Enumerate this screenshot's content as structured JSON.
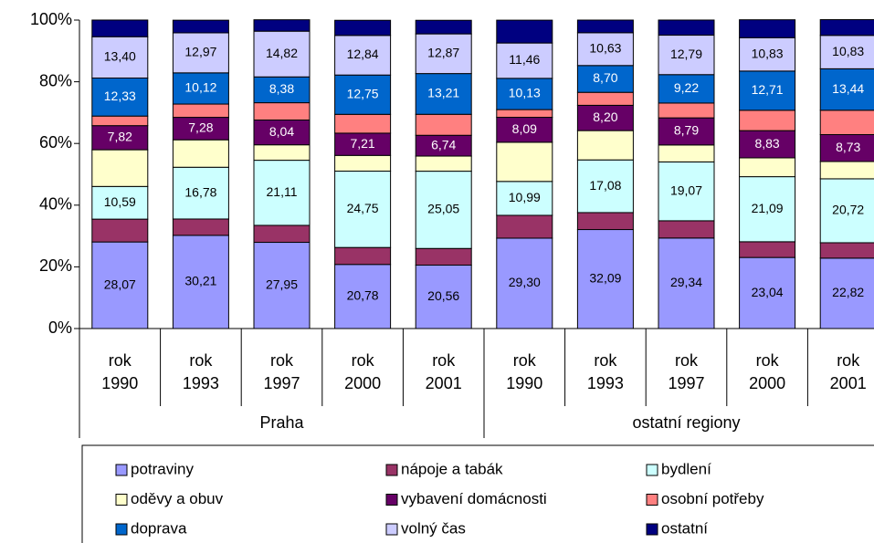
{
  "chart_data": {
    "type": "stacked_bar",
    "categories": [
      [
        "rok",
        "1990"
      ],
      [
        "rok",
        "1993"
      ],
      [
        "rok",
        "1997"
      ],
      [
        "rok",
        "2000"
      ],
      [
        "rok",
        "2001"
      ],
      [
        "rok",
        "1990"
      ],
      [
        "rok",
        "1993"
      ],
      [
        "rok",
        "1997"
      ],
      [
        "rok",
        "2000"
      ],
      [
        "rok",
        "2001"
      ]
    ],
    "groups": [
      "Praha",
      "ostatní regiony"
    ],
    "ylim": [
      0,
      100
    ],
    "yticks": [
      {
        "value": 0,
        "label": "0%"
      },
      {
        "value": 20,
        "label": "20%"
      },
      {
        "value": 40,
        "label": "40%"
      },
      {
        "value": 60,
        "label": "60%"
      },
      {
        "value": 80,
        "label": "80%"
      },
      {
        "value": 100,
        "label": "100%"
      }
    ],
    "series": [
      {
        "name": "potraviny",
        "color": "#9999ff",
        "values": [
          28.07,
          30.21,
          27.95,
          20.78,
          20.56,
          29.3,
          32.09,
          29.34,
          23.04,
          22.82
        ],
        "value_labels": [
          "28,07",
          "30,21",
          "27,95",
          "20,78",
          "20,56",
          "29,30",
          "32,09",
          "29,34",
          "23,04",
          "22,82"
        ]
      },
      {
        "name": "nápoje a tabák",
        "color": "#993366",
        "values": [
          7.4,
          5.3,
          5.5,
          5.5,
          5.4,
          7.4,
          5.5,
          5.6,
          5.1,
          5.0
        ],
        "value_labels": [
          null,
          null,
          null,
          null,
          null,
          null,
          null,
          null,
          null,
          null
        ]
      },
      {
        "name": "bydlení",
        "color": "#ccffff",
        "values": [
          10.59,
          16.78,
          21.11,
          24.75,
          25.05,
          10.99,
          17.08,
          19.07,
          21.09,
          20.72
        ],
        "value_labels": [
          "10,59",
          "16,78",
          "21,11",
          "24,75",
          "25,05",
          "10,99",
          "17,08",
          "19,07",
          "21,09",
          "20,72"
        ]
      },
      {
        "name": "oděvy a obuv",
        "color": "#ffffcc",
        "values": [
          11.9,
          8.9,
          5.0,
          5.1,
          4.9,
          12.7,
          9.5,
          5.5,
          6.1,
          5.6
        ],
        "value_labels": [
          null,
          null,
          null,
          null,
          null,
          null,
          null,
          null,
          null,
          null
        ]
      },
      {
        "name": "vybavení domácnosti",
        "color": "#660066",
        "values": [
          7.82,
          7.28,
          8.04,
          7.21,
          6.74,
          8.09,
          8.2,
          8.79,
          8.83,
          8.73
        ],
        "value_labels": [
          "7,82",
          "7,28",
          "8,04",
          "7,21",
          "6,74",
          "8,09",
          "8,20",
          "8,79",
          "8,83",
          "8,73"
        ]
      },
      {
        "name": "osobní potřeby",
        "color": "#ff8080",
        "values": [
          3.1,
          4.3,
          5.6,
          6.1,
          6.8,
          2.5,
          4.2,
          4.8,
          6.6,
          7.9
        ],
        "value_labels": [
          null,
          null,
          null,
          null,
          null,
          null,
          null,
          null,
          null,
          null
        ]
      },
      {
        "name": "doprava",
        "color": "#0066cc",
        "values": [
          12.33,
          10.12,
          8.38,
          12.75,
          13.21,
          10.13,
          8.7,
          9.22,
          12.71,
          13.44
        ],
        "value_labels": [
          "12,33",
          "10,12",
          "8,38",
          "12,75",
          "13,21",
          "10,13",
          "8,70",
          "9,22",
          "12,71",
          "13,44"
        ]
      },
      {
        "name": "volný čas",
        "color": "#ccccff",
        "values": [
          13.4,
          12.97,
          14.82,
          12.84,
          12.87,
          11.46,
          10.63,
          12.79,
          10.83,
          10.83
        ],
        "value_labels": [
          "13,40",
          "12,97",
          "14,82",
          "12,84",
          "12,87",
          "11,46",
          "10,63",
          "12,79",
          "10,83",
          "10,83"
        ]
      },
      {
        "name": "ostatní",
        "color": "#000080",
        "values": [
          5.4,
          4.1,
          3.7,
          4.9,
          4.4,
          7.4,
          4.1,
          4.9,
          5.8,
          5.1
        ],
        "value_labels": [
          null,
          null,
          null,
          null,
          null,
          null,
          null,
          null,
          null,
          null
        ]
      }
    ]
  }
}
